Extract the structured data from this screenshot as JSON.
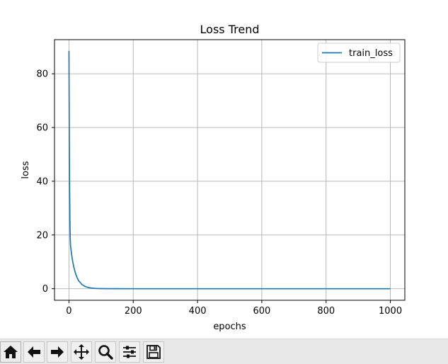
{
  "window": {
    "toolbar": {
      "buttons": [
        {
          "name": "home-icon"
        },
        {
          "name": "back-icon"
        },
        {
          "name": "forward-icon"
        },
        {
          "name": "pan-icon"
        },
        {
          "name": "zoom-icon"
        },
        {
          "name": "configure-subplots-icon"
        },
        {
          "name": "save-icon"
        }
      ]
    }
  },
  "colors": {
    "line": "#1f77b4",
    "grid": "#b0b0b0",
    "toolbar_bg": "#e8e8e8"
  },
  "chart_data": {
    "type": "line",
    "title": "Loss Trend",
    "xlabel": "epochs",
    "ylabel": "loss",
    "xlim": [
      -45,
      1045
    ],
    "ylim": [
      -4.3,
      92.7
    ],
    "xticks": [
      0,
      200,
      400,
      600,
      800,
      1000
    ],
    "yticks": [
      0,
      20,
      40,
      60,
      80
    ],
    "xtick_labels": [
      "0",
      "200",
      "400",
      "600",
      "800",
      "1000"
    ],
    "ytick_labels": [
      "0",
      "20",
      "40",
      "60",
      "80"
    ],
    "grid": true,
    "legend_position": "upper right",
    "series": [
      {
        "name": "train_loss",
        "x": [
          0,
          1,
          2,
          3,
          4,
          5,
          6,
          8,
          10,
          12,
          15,
          20,
          25,
          30,
          40,
          50,
          60,
          70,
          80,
          90,
          100,
          120,
          150,
          200,
          300,
          400,
          500,
          600,
          700,
          800,
          900,
          1000
        ],
        "y": [
          88.5,
          58.0,
          38.0,
          25.0,
          18.5,
          15.8,
          15.0,
          13.0,
          11.3,
          9.9,
          8.1,
          5.8,
          4.2,
          3.0,
          1.6,
          0.85,
          0.45,
          0.25,
          0.13,
          0.07,
          0.04,
          0.02,
          0.01,
          0.0,
          0.0,
          0.0,
          0.0,
          0.0,
          0.0,
          0.0,
          0.0,
          0.0
        ]
      }
    ]
  }
}
